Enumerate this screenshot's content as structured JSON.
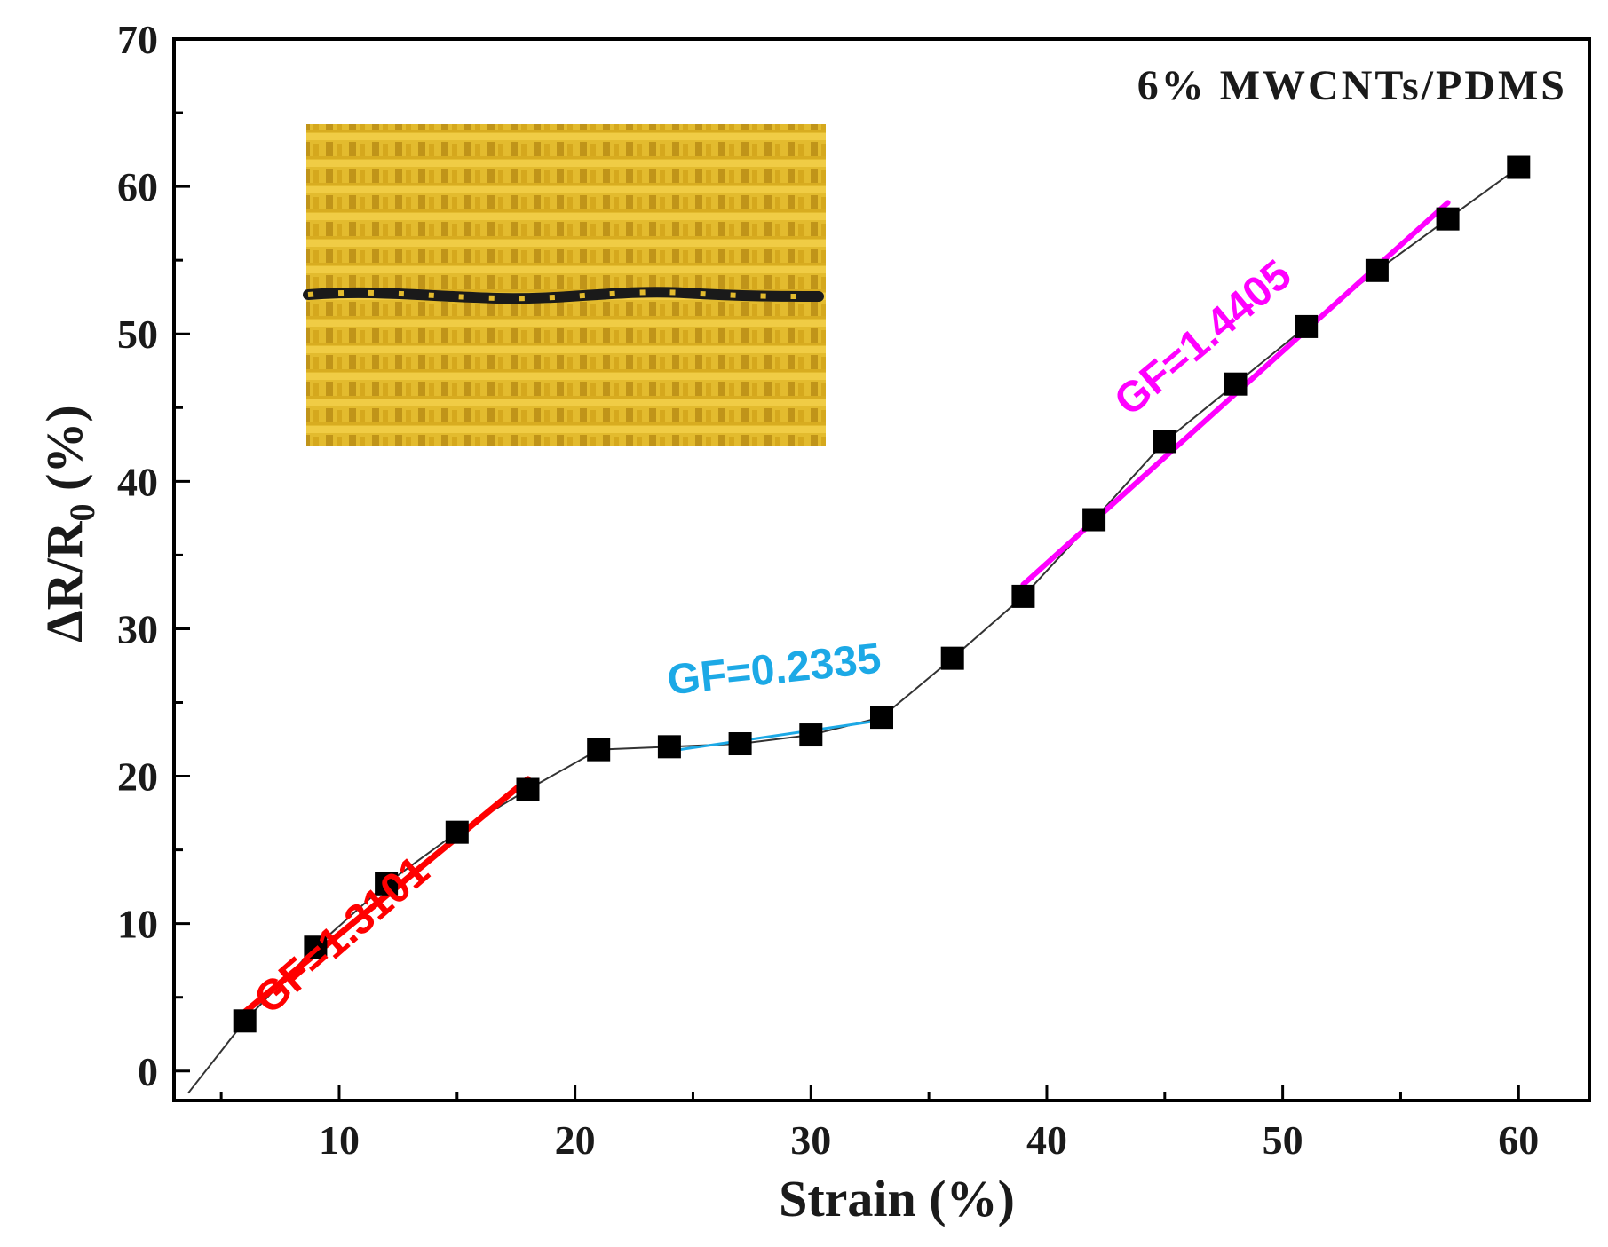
{
  "chart_data": {
    "type": "scatter",
    "title": "",
    "legend_text": "6%  MWCNTs/PDMS",
    "legend_position": "top-right",
    "xlabel": "Strain (%)",
    "ylabel_main": "ΔR/R",
    "ylabel_sub": "0",
    "ylabel_suffix": " (%)",
    "xlim": [
      3,
      63
    ],
    "ylim": [
      -2,
      70
    ],
    "xticks": [
      10,
      20,
      30,
      40,
      50,
      60
    ],
    "yticks": [
      0,
      10,
      20,
      30,
      40,
      50,
      60,
      70
    ],
    "x_minor_step": 5,
    "y_minor_step": 5,
    "grid": false,
    "series": [
      {
        "name": "6% MWCNTs/PDMS",
        "marker": "square",
        "color": "#000000",
        "x": [
          6,
          9,
          12,
          15,
          18,
          21,
          24,
          27,
          30,
          33,
          36,
          39,
          42,
          45,
          48,
          51,
          54,
          57,
          60
        ],
        "y": [
          3.4,
          8.4,
          12.7,
          16.2,
          19.1,
          21.8,
          22.0,
          22.2,
          22.8,
          24.0,
          28.0,
          32.2,
          37.4,
          42.7,
          46.6,
          50.5,
          54.3,
          57.8,
          61.3
        ]
      }
    ],
    "connector_line": {
      "x": [
        3.6,
        6
      ],
      "y": [
        -1.5,
        3.4
      ]
    },
    "fits": [
      {
        "label": "GF=1.3101",
        "color": "#ff0000",
        "x": [
          6,
          18
        ],
        "y": [
          4.0,
          19.8
        ]
      },
      {
        "label": "GF=0.2335",
        "color": "#1ca9e6",
        "x": [
          24,
          33
        ],
        "y": [
          21.7,
          23.8
        ]
      },
      {
        "label": "GF=1.4405",
        "color": "#ff00ff",
        "x": [
          39,
          57
        ],
        "y": [
          33.0,
          58.9
        ]
      }
    ]
  },
  "inset_image": {
    "description_icon": "fabric-sample-photo",
    "fabric_color": "#e2b829",
    "fabric_shadow": "#b88a10",
    "fiber_color": "#1a1a1a"
  }
}
